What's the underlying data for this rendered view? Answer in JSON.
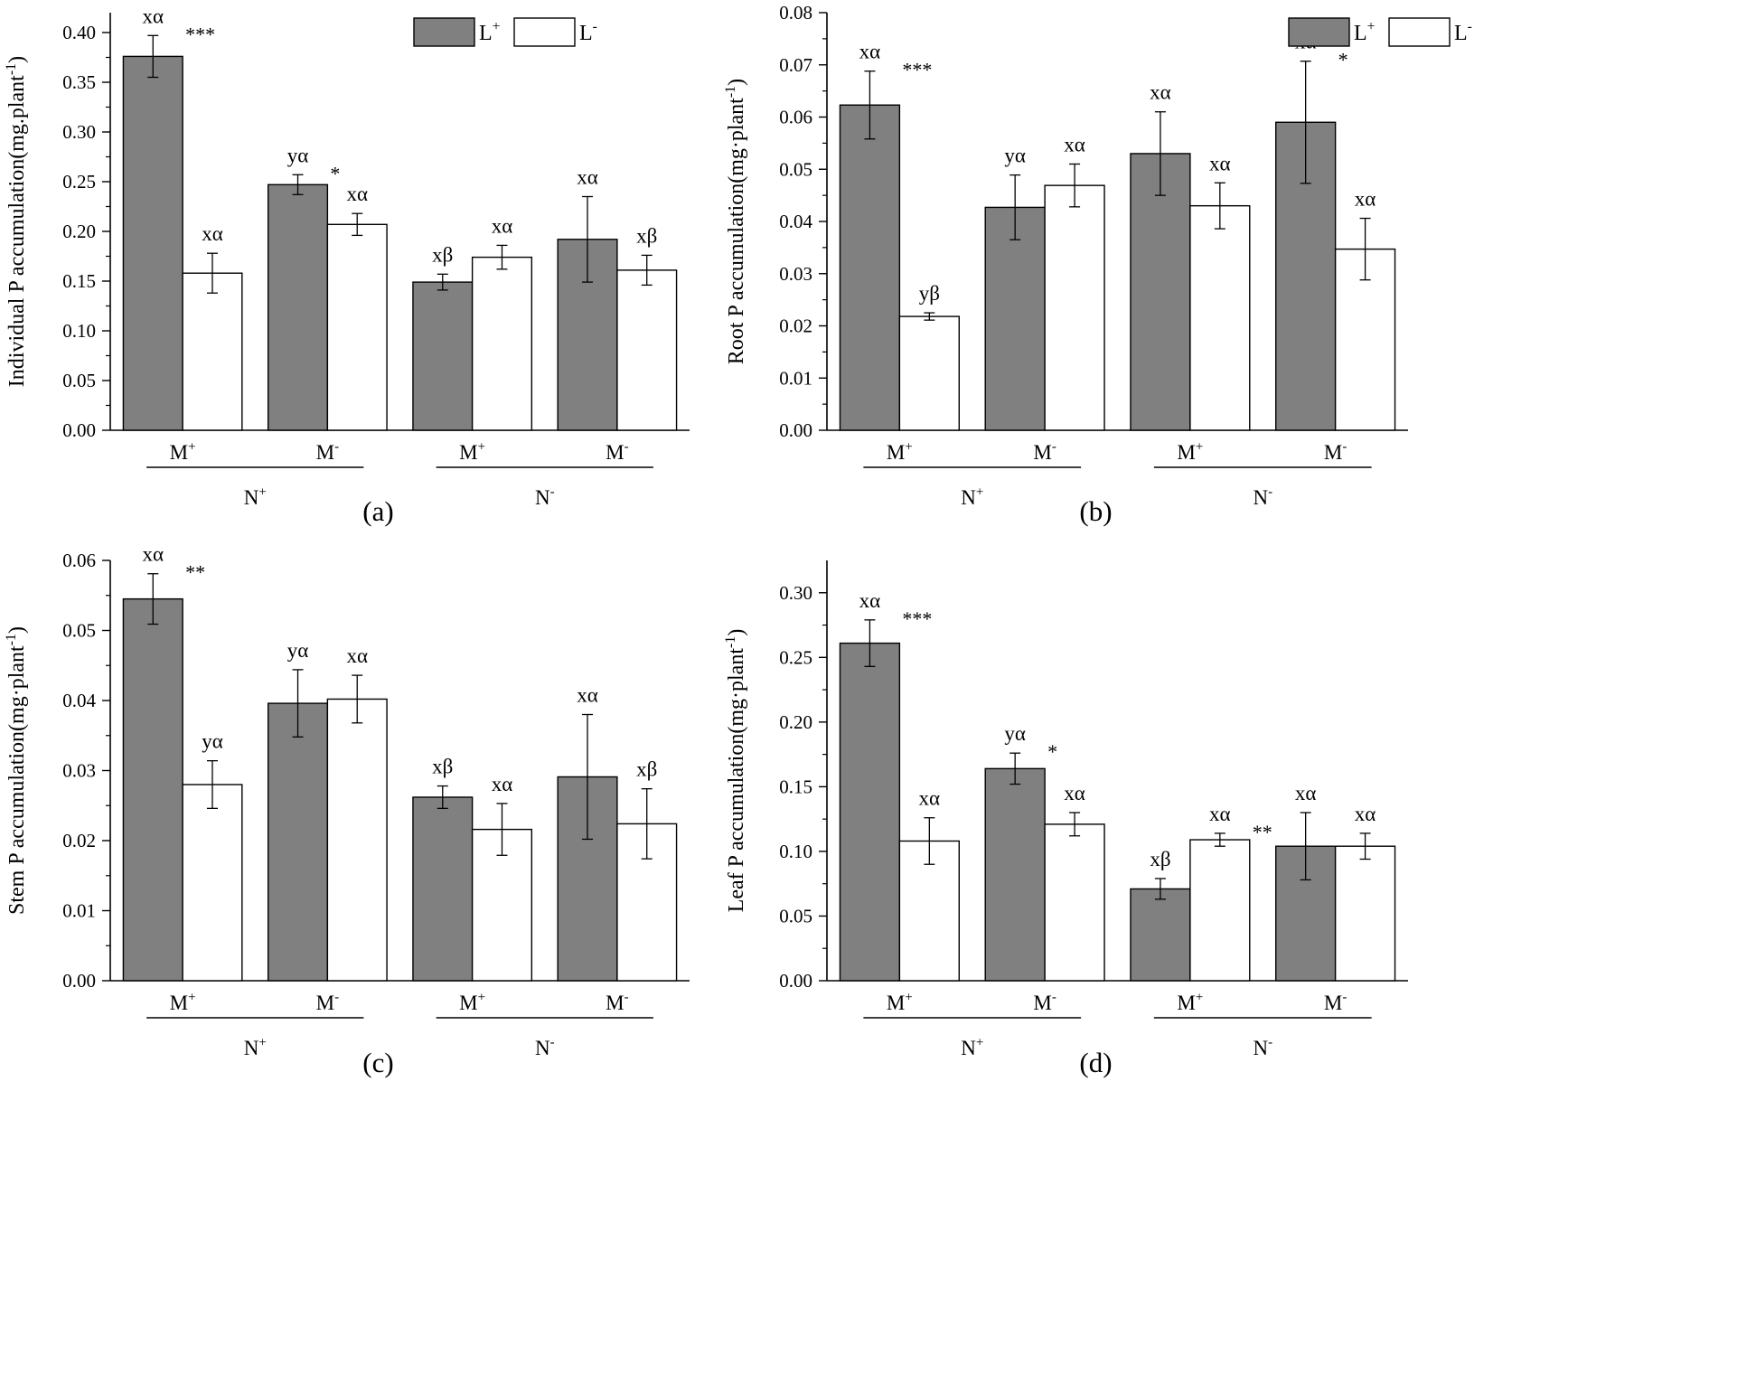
{
  "legend": {
    "items": [
      {
        "base": "L",
        "sup": "+",
        "color": "#808080"
      },
      {
        "base": "L",
        "sup": "-",
        "color": "#ffffff"
      }
    ]
  },
  "x_labels": {
    "m_levels": [
      {
        "base": "M",
        "sup": "+"
      },
      {
        "base": "M",
        "sup": "-"
      },
      {
        "base": "M",
        "sup": "+"
      },
      {
        "base": "M",
        "sup": "-"
      }
    ],
    "n_levels": [
      {
        "base": "N",
        "sup": "+"
      },
      {
        "base": "N",
        "sup": "-"
      }
    ]
  },
  "chart_data": [
    {
      "type": "bar",
      "panel": "(a)",
      "ylabel": "Individual P accumulation(mg.plant",
      "ylabel_sup": "-1",
      "ylabel_tail": ")",
      "ylim": [
        0,
        0.42
      ],
      "yticks": [
        "0.00",
        "0.05",
        "0.10",
        "0.15",
        "0.20",
        "0.25",
        "0.30",
        "0.35",
        "0.40"
      ],
      "show_legend": true,
      "series": [
        {
          "name": "L+",
          "color": "#808080",
          "values": [
            0.376,
            0.247,
            0.149,
            0.192
          ],
          "errors": [
            0.021,
            0.01,
            0.008,
            0.043
          ],
          "labels": [
            "xα",
            "yα",
            "xβ",
            "xα"
          ],
          "stars": [
            "***",
            "*",
            "",
            ""
          ]
        },
        {
          "name": "L-",
          "color": "#ffffff",
          "values": [
            0.158,
            0.207,
            0.174,
            0.161
          ],
          "errors": [
            0.02,
            0.011,
            0.012,
            0.015
          ],
          "labels": [
            "xα",
            "xα",
            "xα",
            "xβ"
          ],
          "stars": [
            "",
            "",
            "",
            ""
          ]
        }
      ]
    },
    {
      "type": "bar",
      "panel": "(b)",
      "ylabel": "Root P accumulation(mg·plant",
      "ylabel_sup": "-1",
      "ylabel_tail": ")",
      "ylim": [
        0,
        0.08
      ],
      "yticks": [
        "0.00",
        "0.01",
        "0.02",
        "0.03",
        "0.04",
        "0.05",
        "0.06",
        "0.07",
        "0.08"
      ],
      "show_legend": true,
      "series": [
        {
          "name": "L+",
          "color": "#808080",
          "values": [
            0.0623,
            0.0427,
            0.053,
            0.059
          ],
          "errors": [
            0.0065,
            0.0062,
            0.008,
            0.0117
          ],
          "labels": [
            "xα",
            "yα",
            "xα",
            "xα"
          ],
          "stars": [
            "***",
            "",
            "",
            "*"
          ]
        },
        {
          "name": "L-",
          "color": "#ffffff",
          "values": [
            0.0218,
            0.0469,
            0.043,
            0.0347
          ],
          "errors": [
            0.0007,
            0.0041,
            0.0044,
            0.0059
          ],
          "labels": [
            "yβ",
            "xα",
            "xα",
            "xα"
          ],
          "stars": [
            "",
            "",
            "",
            ""
          ]
        }
      ]
    },
    {
      "type": "bar",
      "panel": "(c)",
      "ylabel": "Stem P accumulation(mg·plant",
      "ylabel_sup": "-1",
      "ylabel_tail": ")",
      "ylim": [
        0,
        0.06
      ],
      "yticks": [
        "0.00",
        "0.01",
        "0.02",
        "0.03",
        "0.04",
        "0.05",
        "0.06"
      ],
      "show_legend": false,
      "series": [
        {
          "name": "L+",
          "color": "#808080",
          "values": [
            0.0545,
            0.0396,
            0.0262,
            0.0291
          ],
          "errors": [
            0.0036,
            0.0048,
            0.0016,
            0.0089
          ],
          "labels": [
            "xα",
            "yα",
            "xβ",
            "xα"
          ],
          "stars": [
            "**",
            "",
            "",
            ""
          ]
        },
        {
          "name": "L-",
          "color": "#ffffff",
          "values": [
            0.028,
            0.0402,
            0.0216,
            0.0224
          ],
          "errors": [
            0.0034,
            0.0034,
            0.0037,
            0.005
          ],
          "labels": [
            "yα",
            "xα",
            "xα",
            "xβ"
          ],
          "stars": [
            "",
            "",
            "",
            ""
          ]
        }
      ]
    },
    {
      "type": "bar",
      "panel": "(d)",
      "ylabel": "Leaf P accumulation(mg·plant",
      "ylabel_sup": "-1",
      "ylabel_tail": ")",
      "ylim": [
        0,
        0.325
      ],
      "yticks": [
        "0.00",
        "0.05",
        "0.10",
        "0.15",
        "0.20",
        "0.25",
        "0.30"
      ],
      "show_legend": false,
      "series": [
        {
          "name": "L+",
          "color": "#808080",
          "values": [
            0.261,
            0.164,
            0.071,
            0.104
          ],
          "errors": [
            0.018,
            0.012,
            0.008,
            0.026
          ],
          "labels": [
            "xα",
            "yα",
            "xβ",
            "xα"
          ],
          "stars": [
            "***",
            "*",
            "",
            ""
          ]
        },
        {
          "name": "L-",
          "color": "#ffffff",
          "values": [
            0.108,
            0.121,
            0.109,
            0.104
          ],
          "errors": [
            0.018,
            0.009,
            0.005,
            0.01
          ],
          "labels": [
            "xα",
            "xα",
            "xα",
            "xα"
          ],
          "stars": [
            "",
            "",
            "**",
            ""
          ]
        }
      ]
    }
  ]
}
